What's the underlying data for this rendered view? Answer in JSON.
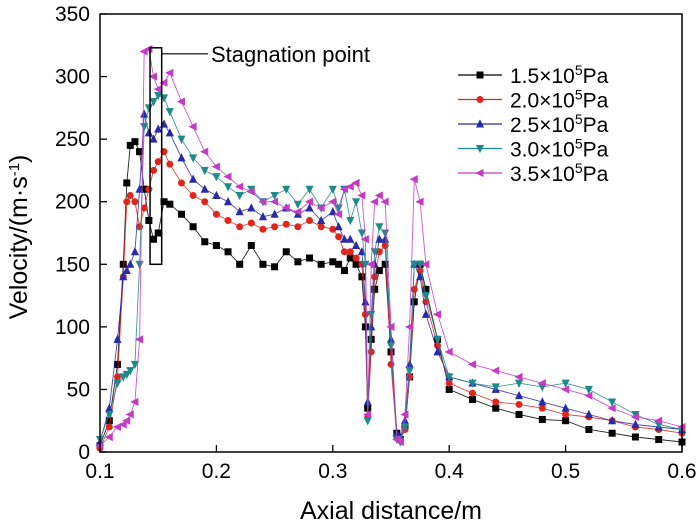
{
  "chart_data": {
    "type": "line",
    "xlabel": "Axial distance/m",
    "ylabel": "Velocity/(m·s",
    "ylabel_sup": "-1",
    "ylabel_close": ")",
    "xlim": [
      0.1,
      0.6
    ],
    "ylim": [
      0,
      350
    ],
    "xticks": [
      "0.1",
      "0.2",
      "0.3",
      "0.4",
      "0.5",
      "0.6"
    ],
    "yticks": [
      "0",
      "50",
      "100",
      "150",
      "200",
      "250",
      "300",
      "350"
    ],
    "grid": false,
    "legend_position": "top-right",
    "annotation": {
      "text": "Stagnation point",
      "x_range": [
        0.143,
        0.153
      ],
      "y_range": [
        150,
        323
      ]
    },
    "series": [
      {
        "name": "1.5×10⁵Pa",
        "base": "1.5×10",
        "sup": "5",
        "unit": "Pa",
        "color": "#000000",
        "marker": "square",
        "x": [
          0.1,
          0.108,
          0.115,
          0.12,
          0.123,
          0.126,
          0.13,
          0.134,
          0.138,
          0.142,
          0.146,
          0.15,
          0.155,
          0.16,
          0.17,
          0.18,
          0.19,
          0.2,
          0.21,
          0.22,
          0.23,
          0.24,
          0.25,
          0.26,
          0.27,
          0.28,
          0.29,
          0.3,
          0.305,
          0.31,
          0.315,
          0.32,
          0.325,
          0.328,
          0.33,
          0.333,
          0.336,
          0.34,
          0.345,
          0.35,
          0.355,
          0.358,
          0.362,
          0.366,
          0.37,
          0.375,
          0.38,
          0.39,
          0.4,
          0.42,
          0.44,
          0.46,
          0.48,
          0.5,
          0.52,
          0.54,
          0.56,
          0.58,
          0.6
        ],
        "y": [
          5,
          25,
          70,
          150,
          215,
          245,
          248,
          240,
          210,
          185,
          170,
          175,
          200,
          198,
          190,
          180,
          168,
          165,
          160,
          150,
          165,
          150,
          148,
          160,
          152,
          155,
          150,
          152,
          150,
          145,
          155,
          150,
          140,
          100,
          35,
          90,
          130,
          145,
          150,
          80,
          15,
          10,
          20,
          60,
          120,
          150,
          130,
          90,
          50,
          42,
          35,
          30,
          26,
          25,
          18,
          15,
          12,
          10,
          8
        ]
      },
      {
        "name": "2.0×10⁵Pa",
        "base": "2.0×10",
        "sup": "5",
        "unit": "Pa",
        "color": "#e0251c",
        "marker": "circle",
        "x": [
          0.1,
          0.108,
          0.115,
          0.12,
          0.123,
          0.126,
          0.13,
          0.134,
          0.138,
          0.142,
          0.146,
          0.15,
          0.155,
          0.16,
          0.17,
          0.18,
          0.19,
          0.2,
          0.21,
          0.22,
          0.23,
          0.24,
          0.25,
          0.26,
          0.27,
          0.28,
          0.29,
          0.3,
          0.305,
          0.31,
          0.315,
          0.32,
          0.325,
          0.328,
          0.33,
          0.333,
          0.336,
          0.34,
          0.345,
          0.35,
          0.355,
          0.358,
          0.362,
          0.366,
          0.37,
          0.375,
          0.38,
          0.39,
          0.4,
          0.42,
          0.44,
          0.46,
          0.48,
          0.5,
          0.52,
          0.54,
          0.56,
          0.58,
          0.6
        ],
        "y": [
          3,
          20,
          60,
          140,
          200,
          205,
          200,
          180,
          195,
          210,
          225,
          232,
          240,
          230,
          215,
          205,
          200,
          190,
          185,
          180,
          183,
          178,
          180,
          182,
          180,
          185,
          180,
          178,
          172,
          160,
          160,
          155,
          150,
          110,
          28,
          80,
          140,
          160,
          165,
          70,
          12,
          10,
          18,
          60,
          130,
          145,
          120,
          85,
          55,
          47,
          40,
          38,
          35,
          30,
          28,
          25,
          20,
          18,
          15
        ]
      },
      {
        "name": "2.5×10⁵Pa",
        "base": "2.5×10",
        "sup": "5",
        "unit": "Pa",
        "color": "#2a2aa8",
        "marker": "triangle-up",
        "x": [
          0.1,
          0.108,
          0.115,
          0.12,
          0.123,
          0.126,
          0.13,
          0.134,
          0.138,
          0.142,
          0.146,
          0.15,
          0.155,
          0.16,
          0.17,
          0.18,
          0.19,
          0.2,
          0.21,
          0.22,
          0.23,
          0.24,
          0.25,
          0.26,
          0.27,
          0.28,
          0.29,
          0.3,
          0.305,
          0.31,
          0.315,
          0.32,
          0.325,
          0.328,
          0.33,
          0.333,
          0.336,
          0.34,
          0.345,
          0.35,
          0.355,
          0.358,
          0.362,
          0.366,
          0.37,
          0.375,
          0.38,
          0.39,
          0.4,
          0.42,
          0.44,
          0.46,
          0.48,
          0.5,
          0.52,
          0.54,
          0.56,
          0.58,
          0.6
        ],
        "y": [
          8,
          35,
          90,
          140,
          145,
          150,
          160,
          210,
          270,
          255,
          250,
          258,
          262,
          255,
          235,
          218,
          210,
          205,
          200,
          192,
          195,
          188,
          190,
          195,
          190,
          195,
          185,
          192,
          180,
          170,
          170,
          165,
          160,
          120,
          40,
          100,
          150,
          170,
          170,
          90,
          15,
          12,
          25,
          70,
          150,
          140,
          110,
          80,
          60,
          55,
          50,
          45,
          40,
          35,
          30,
          25,
          22,
          20,
          18
        ]
      },
      {
        "name": "3.0×10⁵Pa",
        "base": "3.0×10",
        "sup": "5",
        "unit": "Pa",
        "color": "#1f8a8a",
        "marker": "triangle-down",
        "x": [
          0.1,
          0.108,
          0.115,
          0.12,
          0.123,
          0.126,
          0.13,
          0.134,
          0.138,
          0.142,
          0.146,
          0.15,
          0.155,
          0.16,
          0.17,
          0.18,
          0.19,
          0.2,
          0.21,
          0.22,
          0.23,
          0.24,
          0.25,
          0.26,
          0.27,
          0.28,
          0.29,
          0.3,
          0.305,
          0.31,
          0.315,
          0.32,
          0.325,
          0.328,
          0.33,
          0.333,
          0.336,
          0.34,
          0.345,
          0.35,
          0.355,
          0.358,
          0.362,
          0.366,
          0.37,
          0.375,
          0.38,
          0.39,
          0.4,
          0.42,
          0.44,
          0.46,
          0.48,
          0.5,
          0.52,
          0.54,
          0.56,
          0.58,
          0.6
        ],
        "y": [
          10,
          30,
          55,
          60,
          62,
          65,
          70,
          150,
          260,
          275,
          280,
          285,
          283,
          272,
          250,
          235,
          225,
          220,
          212,
          205,
          210,
          200,
          205,
          210,
          198,
          210,
          195,
          210,
          195,
          210,
          185,
          200,
          175,
          150,
          25,
          110,
          160,
          180,
          175,
          85,
          10,
          8,
          20,
          65,
          150,
          150,
          125,
          90,
          60,
          55,
          52,
          55,
          52,
          55,
          50,
          40,
          30,
          22,
          18
        ]
      },
      {
        "name": "3.5×10⁵Pa",
        "base": "3.5×10",
        "sup": "5",
        "unit": "Pa",
        "color": "#c43bc4",
        "marker": "triangle-left",
        "x": [
          0.1,
          0.108,
          0.115,
          0.12,
          0.123,
          0.126,
          0.13,
          0.134,
          0.138,
          0.142,
          0.146,
          0.15,
          0.155,
          0.16,
          0.17,
          0.18,
          0.19,
          0.2,
          0.21,
          0.22,
          0.23,
          0.24,
          0.25,
          0.26,
          0.27,
          0.28,
          0.29,
          0.3,
          0.305,
          0.31,
          0.315,
          0.32,
          0.325,
          0.328,
          0.33,
          0.333,
          0.336,
          0.34,
          0.345,
          0.35,
          0.355,
          0.358,
          0.362,
          0.366,
          0.37,
          0.375,
          0.38,
          0.39,
          0.4,
          0.42,
          0.44,
          0.46,
          0.48,
          0.5,
          0.52,
          0.54,
          0.56,
          0.58,
          0.6
        ],
        "y": [
          5,
          12,
          20,
          22,
          25,
          30,
          40,
          90,
          320,
          322,
          300,
          290,
          295,
          303,
          280,
          260,
          240,
          228,
          220,
          212,
          208,
          200,
          200,
          195,
          192,
          200,
          195,
          200,
          190,
          210,
          212,
          215,
          205,
          170,
          30,
          150,
          200,
          205,
          200,
          100,
          10,
          8,
          30,
          100,
          218,
          200,
          150,
          110,
          80,
          70,
          65,
          60,
          55,
          50,
          45,
          35,
          28,
          25,
          20
        ]
      }
    ]
  }
}
